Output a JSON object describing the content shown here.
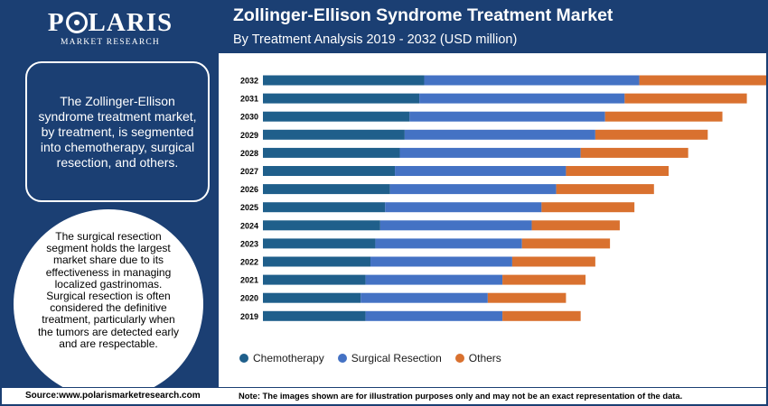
{
  "brand": {
    "name_pre": "P",
    "name_post": "LARIS",
    "subtitle": "MARKET RESEARCH"
  },
  "info_box": "The Zollinger-Ellison syndrome treatment market, by treatment, is segmented into chemotherapy, surgical resection, and others.",
  "circle_text": "The surgical resection segment holds the largest market share due to its effectiveness in managing localized gastrinomas. Surgical resection is often considered the definitive treatment, particularly when the tumors are detected early and are respectable.",
  "header": {
    "title": "Zollinger-Ellison Syndrome Treatment Market",
    "subtitle": "By Treatment Analysis 2019 - 2032 (USD million)"
  },
  "footer": {
    "source": "Source:www.polarismarketresearch.com",
    "note": "Note: The images shown are for illustration purposes only and may not be an exact representation of the data."
  },
  "colors": {
    "panel": "#1b3f73",
    "chemotherapy": "#1f5f8b",
    "surgical_resection": "#4472c4",
    "others": "#d9712f"
  },
  "chart_data": {
    "type": "bar",
    "orientation": "horizontal",
    "stacked": true,
    "categories": [
      "2019",
      "2020",
      "2021",
      "2022",
      "2023",
      "2024",
      "2025",
      "2026",
      "2027",
      "2028",
      "2029",
      "2030",
      "2031",
      "2032"
    ],
    "series": [
      {
        "name": "Chemotherapy",
        "color": "#1f5f8b",
        "values": [
          21,
          20,
          21,
          22,
          23,
          24,
          25,
          26,
          27,
          28,
          29,
          30,
          32,
          33
        ]
      },
      {
        "name": "Surgical Resection",
        "color": "#4472c4",
        "values": [
          28,
          26,
          28,
          29,
          30,
          31,
          32,
          34,
          35,
          37,
          39,
          40,
          42,
          44
        ]
      },
      {
        "name": "Others",
        "color": "#d9712f",
        "values": [
          16,
          16,
          17,
          17,
          18,
          18,
          19,
          20,
          21,
          22,
          23,
          24,
          25,
          26
        ]
      }
    ],
    "legend_position": "bottom",
    "axis_labels_visible": false,
    "grid": false
  }
}
